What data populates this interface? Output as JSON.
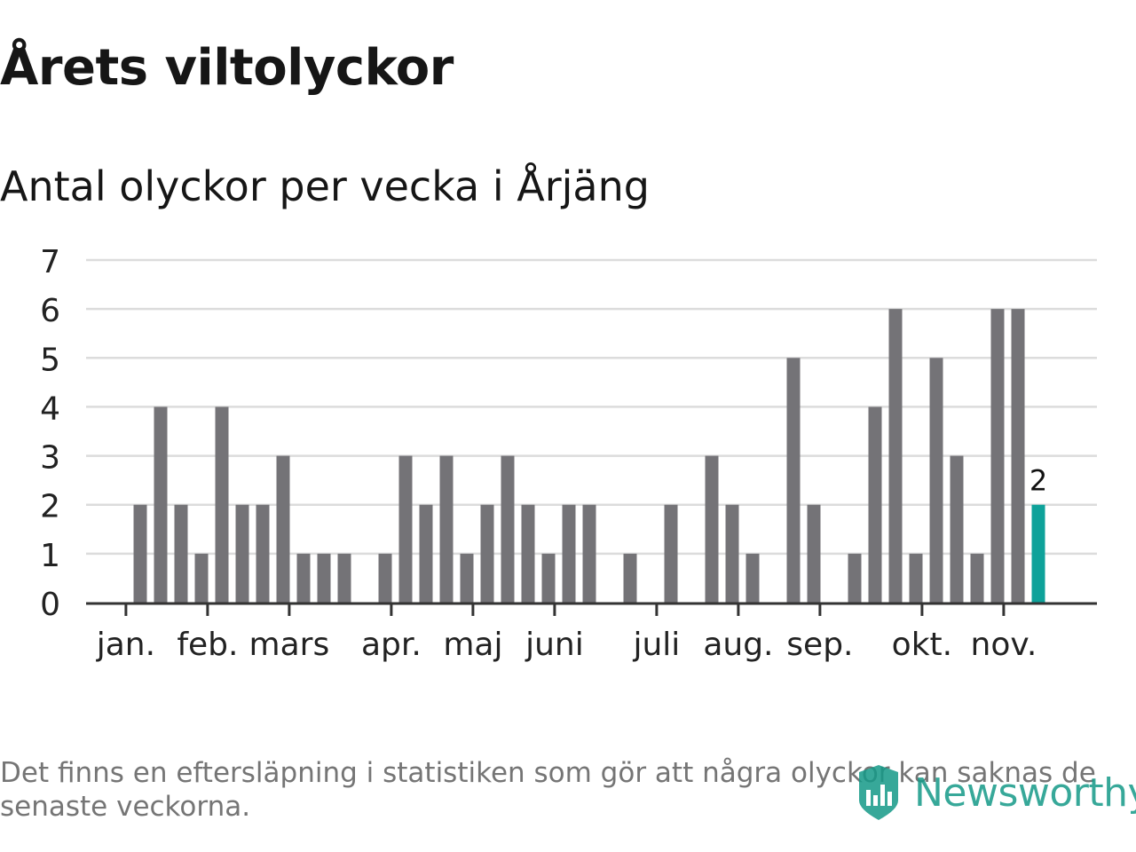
{
  "title": "Årets viltolyckor",
  "subtitle": "Antal olyckor per vecka i Årjäng",
  "footnote": "Det finns en eftersläpning i statistiken som gör att några olyckor kan saknas de senaste veckorna.",
  "logo_text": "Newsworthy",
  "colors": {
    "bar": "#747377",
    "highlight": "#0ea29a",
    "grid": "#dcdcdc",
    "axis": "#333333",
    "logo": "#159a88"
  },
  "chart_data": {
    "type": "bar",
    "title": "Antal olyckor per vecka i Årjäng",
    "xlabel": "",
    "ylabel": "",
    "ylim": [
      0,
      7
    ],
    "yticks": [
      0,
      1,
      2,
      3,
      4,
      5,
      6,
      7
    ],
    "grid": true,
    "x": [
      1,
      2,
      3,
      4,
      5,
      6,
      7,
      8,
      9,
      10,
      11,
      12,
      13,
      14,
      15,
      16,
      17,
      18,
      19,
      20,
      21,
      22,
      23,
      24,
      25,
      26,
      27,
      28,
      29,
      30,
      31,
      32,
      33,
      34,
      35,
      36,
      37,
      38,
      39,
      40,
      41,
      42,
      43,
      44,
      45,
      46
    ],
    "values": [
      0,
      2,
      4,
      2,
      1,
      4,
      2,
      2,
      3,
      1,
      1,
      1,
      0,
      1,
      3,
      2,
      3,
      1,
      2,
      3,
      2,
      1,
      2,
      2,
      0,
      1,
      0,
      2,
      0,
      3,
      2,
      1,
      0,
      5,
      2,
      0,
      1,
      4,
      6,
      1,
      5,
      3,
      1,
      6,
      6,
      2
    ],
    "highlight_index": 45,
    "highlight_label": "2",
    "month_labels": [
      {
        "label": "jan.",
        "week": 1.3
      },
      {
        "label": "feb.",
        "week": 5.3
      },
      {
        "label": "mars",
        "week": 9.3
      },
      {
        "label": "apr.",
        "week": 14.3
      },
      {
        "label": "maj",
        "week": 18.3
      },
      {
        "label": "juni",
        "week": 22.3
      },
      {
        "label": "juli",
        "week": 27.3
      },
      {
        "label": "aug.",
        "week": 31.3
      },
      {
        "label": "sep.",
        "week": 35.3
      },
      {
        "label": "okt.",
        "week": 40.3
      },
      {
        "label": "nov.",
        "week": 44.3
      }
    ]
  }
}
